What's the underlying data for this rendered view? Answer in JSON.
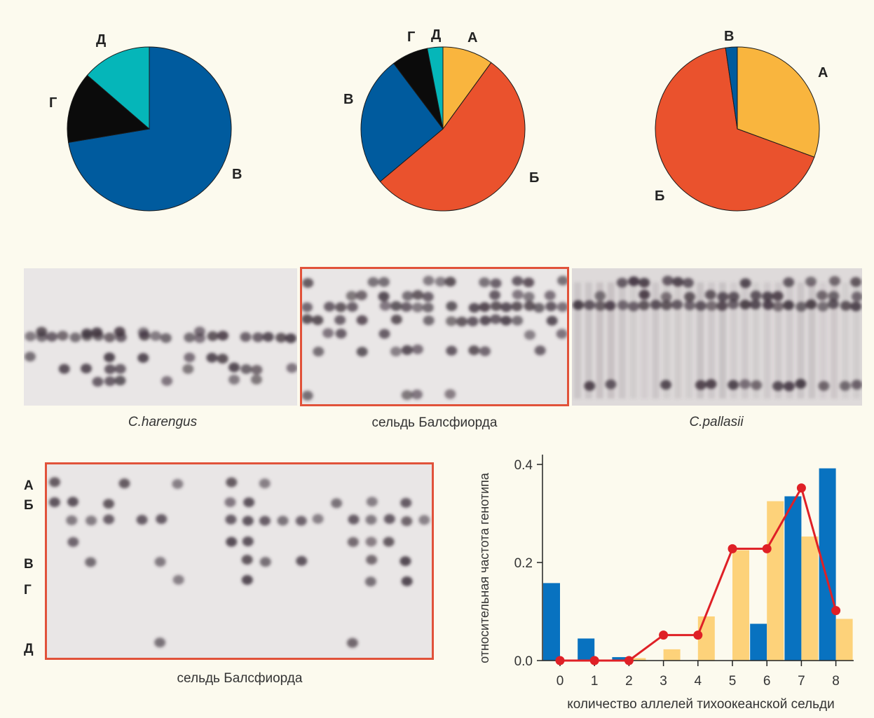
{
  "colors": {
    "A": "#f9b53e",
    "B": "#ea522d",
    "V": "#005b9e",
    "G": "#0b0b0b",
    "D": "#05b6b9",
    "bar_blue": "#0872c0",
    "bar_yellow": "#fdd27a",
    "line_red": "#df2026",
    "frame_red": "#e1523a",
    "background": "#fcfaee"
  },
  "pies": [
    {
      "name": "pie-left",
      "slices": [
        {
          "label": "В",
          "color_key": "V",
          "fraction": 0.7235
        },
        {
          "label": "Г",
          "color_key": "G",
          "fraction": 0.1399
        },
        {
          "label": "Д",
          "color_key": "D",
          "fraction": 0.1366
        }
      ]
    },
    {
      "name": "pie-middle",
      "slices": [
        {
          "label": "А",
          "color_key": "A",
          "fraction": 0.1
        },
        {
          "label": "Б",
          "color_key": "B",
          "fraction": 0.5389
        },
        {
          "label": "В",
          "color_key": "V",
          "fraction": 0.2585
        },
        {
          "label": "Г",
          "color_key": "G",
          "fraction": 0.0719
        },
        {
          "label": "Д",
          "color_key": "D",
          "fraction": 0.0307
        }
      ]
    },
    {
      "name": "pie-right",
      "slices": [
        {
          "label": "А",
          "color_key": "A",
          "fraction": 0.306
        },
        {
          "label": "Б",
          "color_key": "B",
          "fraction": 0.671
        },
        {
          "label": "В",
          "color_key": "V",
          "fraction": 0.023
        }
      ]
    }
  ],
  "gels": {
    "captions": {
      "left": "C.harengus",
      "middle": "сельдь Балсфиорда",
      "right": "C.pallasii",
      "bottom": "сельдь Балсфиорда"
    },
    "band_labels": [
      "А",
      "Б",
      "В",
      "Г",
      "Д"
    ]
  },
  "chart_data": {
    "type": "bar",
    "categories": [
      "0",
      "1",
      "2",
      "3",
      "4",
      "5",
      "6",
      "7",
      "8"
    ],
    "series": [
      {
        "color_key": "bar_blue",
        "kind": "bar",
        "values": [
          0.158,
          0.045,
          0.007,
          0.0,
          0.0,
          0.0,
          0.075,
          0.335,
          0.392
        ]
      },
      {
        "color_key": "bar_yellow",
        "kind": "bar",
        "values": [
          0.0,
          0.0,
          0.005,
          0.023,
          0.09,
          0.225,
          0.325,
          0.253,
          0.085
        ]
      },
      {
        "color_key": "line_red",
        "kind": "line",
        "values": [
          0.0,
          0.0,
          0.0,
          0.052,
          0.052,
          0.228,
          0.228,
          0.352,
          0.102
        ]
      }
    ],
    "xlabel": "количество аллелей тихоокеанской сельди",
    "ylabel": "относительная частота генотипа",
    "yticks": [
      "0.0",
      "0.2",
      "0.4"
    ],
    "ylim": [
      0,
      0.4
    ],
    "grid": false
  }
}
